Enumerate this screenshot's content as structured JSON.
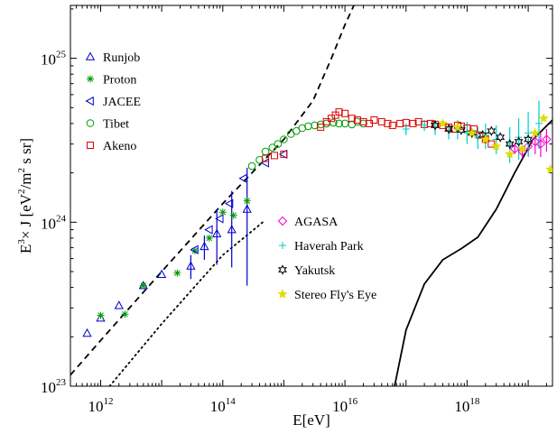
{
  "chart_data": {
    "type": "scatter",
    "title": "",
    "xlabel": "E[eV]",
    "ylabel": "E3× J [eV2/m2 s sr]",
    "ylabel_parts": {
      "e": "E",
      "e_exp": "3",
      "mid": "× J [eV",
      "ev_exp": "2",
      "m": "/m",
      "m_exp": "2",
      "tail": " s sr]"
    },
    "x_scale": "log",
    "y_scale": "log",
    "xlim": [
      320000000000.0,
      2.5e+19
    ],
    "ylim": [
      1e+23,
      2.1e+25
    ],
    "x_ticks": [
      {
        "value": 1000000000000.0,
        "base": "10",
        "exp": "12"
      },
      {
        "value": 100000000000000.0,
        "base": "10",
        "exp": "14"
      },
      {
        "value": 1e+16,
        "base": "10",
        "exp": "16"
      },
      {
        "value": 1e+18,
        "base": "10",
        "exp": "18"
      }
    ],
    "y_ticks": [
      {
        "value": 1e+23,
        "base": "10",
        "exp": "23"
      },
      {
        "value": 1e+24,
        "base": "10",
        "exp": "24"
      },
      {
        "value": 1e+25,
        "base": "10",
        "exp": "25"
      }
    ],
    "grid": false,
    "legend_placement": [
      "top-left",
      "center-right"
    ],
    "legend_groups": [
      [
        "Runjob",
        "Proton",
        "JACEE",
        "Tibet",
        "Akeno"
      ],
      [
        "AGASA",
        "Haverah Park",
        "Yakutsk",
        "Stereo Fly's Eye"
      ]
    ],
    "series": [
      {
        "name": "Runjob",
        "marker": "triangle-up",
        "color": "#0000cc",
        "points": [
          [
            600000000000.0,
            2.1e+23
          ],
          [
            1000000000000.0,
            2.6e+23
          ],
          [
            2000000000000.0,
            3.1e+23
          ],
          [
            5000000000000.0,
            4.1e+23
          ],
          [
            10000000000000.0,
            4.8e+23
          ],
          [
            30000000000000.0,
            5.4e+23
          ],
          [
            50000000000000.0,
            7.1e+23
          ],
          [
            80000000000000.0,
            8.5e+23
          ],
          [
            140000000000000.0,
            9e+23
          ],
          [
            250000000000000.0,
            1.2e+24
          ]
        ],
        "error_bars": [
          null,
          null,
          null,
          null,
          null,
          [
            4.5e+23,
            6.3e+23
          ],
          [
            5.9e+23,
            8.3e+23
          ],
          [
            5.5e+23,
            1.2e+24
          ],
          [
            5.3e+23,
            1.55e+24
          ],
          [
            4.1e+23,
            2.15e+24
          ]
        ]
      },
      {
        "name": "Proton",
        "marker": "asterisk",
        "color": "#009900",
        "points": [
          [
            1000000000000.0,
            2.7e+23
          ],
          [
            2500000000000.0,
            2.75e+23
          ],
          [
            5000000000000.0,
            4.1e+23
          ],
          [
            18000000000000.0,
            4.9e+23
          ],
          [
            35000000000000.0,
            6.7e+23
          ],
          [
            60000000000000.0,
            8e+23
          ],
          [
            100000000000000.0,
            1.15e+24
          ],
          [
            150000000000000.0,
            1.1e+24
          ],
          [
            250000000000000.0,
            1.35e+24
          ]
        ]
      },
      {
        "name": "JACEE",
        "marker": "triangle-left",
        "color": "#0000cc",
        "points": [
          [
            35000000000000.0,
            6.8e+23
          ],
          [
            60000000000000.0,
            9e+23
          ],
          [
            90000000000000.0,
            1.05e+24
          ],
          [
            130000000000000.0,
            1.3e+24
          ],
          [
            220000000000000.0,
            1.85e+24
          ],
          [
            500000000000000.0,
            2.3e+24
          ],
          [
            1000000000000000.0,
            2.6e+24
          ]
        ]
      },
      {
        "name": "Tibet",
        "marker": "circle",
        "color": "#009900",
        "points": [
          [
            300000000000000.0,
            2.2e+24
          ],
          [
            400000000000000.0,
            2.4e+24
          ],
          [
            500000000000000.0,
            2.7e+24
          ],
          [
            650000000000000.0,
            2.85e+24
          ],
          [
            800000000000000.0,
            3e+24
          ],
          [
            1000000000000000.0,
            3.2e+24
          ],
          [
            1300000000000000.0,
            3.45e+24
          ],
          [
            1600000000000000.0,
            3.6e+24
          ],
          [
            2000000000000000.0,
            3.75e+24
          ],
          [
            2500000000000000.0,
            3.85e+24
          ],
          [
            3200000000000000.0,
            3.9e+24
          ],
          [
            4000000000000000.0,
            3.95e+24
          ],
          [
            5000000000000000.0,
            4e+24
          ],
          [
            6500000000000000.0,
            4.05e+24
          ],
          [
            8000000000000000.0,
            4e+24
          ],
          [
            1e+16,
            4e+24
          ],
          [
            1.3e+16,
            3.95e+24
          ],
          [
            1.6e+16,
            4.1e+24
          ],
          [
            2e+16,
            4e+24
          ]
        ]
      },
      {
        "name": "Akeno",
        "marker": "square",
        "color": "#dd0000",
        "points": [
          [
            500000000000000.0,
            2.45e+24
          ],
          [
            700000000000000.0,
            2.55e+24
          ],
          [
            1000000000000000.0,
            2.6e+24
          ],
          [
            4000000000000000.0,
            3.8e+24
          ],
          [
            5000000000000000.0,
            4.1e+24
          ],
          [
            6000000000000000.0,
            4.3e+24
          ],
          [
            7000000000000000.0,
            4.5e+24
          ],
          [
            8000000000000000.0,
            4.7e+24
          ],
          [
            1e+16,
            4.6e+24
          ],
          [
            1.3e+16,
            4.3e+24
          ],
          [
            1.6e+16,
            4.2e+24
          ],
          [
            2e+16,
            4.1e+24
          ],
          [
            2.5e+16,
            4e+24
          ],
          [
            3e+16,
            4.2e+24
          ],
          [
            4e+16,
            4.1e+24
          ],
          [
            5e+16,
            4e+24
          ],
          [
            6e+16,
            3.9e+24
          ],
          [
            8e+16,
            4e+24
          ],
          [
            1e+17,
            4.05e+24
          ],
          [
            1.3e+17,
            4e+24
          ],
          [
            1.6e+17,
            4.1e+24
          ],
          [
            2e+17,
            3.95e+24
          ],
          [
            2.5e+17,
            4e+24
          ],
          [
            3e+17,
            3.95e+24
          ],
          [
            4e+17,
            3.9e+24
          ],
          [
            5e+17,
            3.8e+24
          ],
          [
            6e+17,
            3.7e+24
          ],
          [
            7e+17,
            3.9e+24
          ],
          [
            8e+17,
            3.85e+24
          ],
          [
            1e+18,
            3.75e+24
          ],
          [
            1.3e+18,
            3.7e+24
          ],
          [
            1.6e+18,
            3.4e+24
          ],
          [
            2e+18,
            3.2e+24
          ],
          [
            2.5e+18,
            3e+24
          ]
        ]
      },
      {
        "name": "AGASA",
        "marker": "diamond",
        "color": "#ff00cc",
        "points": [
          [
            6e+18,
            2.8e+24
          ],
          [
            8e+18,
            2.7e+24
          ],
          [
            1e+19,
            2.9e+24
          ],
          [
            1.3e+19,
            3.1e+24
          ],
          [
            1.6e+19,
            3e+24
          ],
          [
            2e+19,
            3.2e+24
          ]
        ],
        "error_bars": [
          [
            2.6e+24,
            3e+24
          ],
          [
            2.45e+24,
            2.95e+24
          ],
          [
            2.5e+24,
            3.3e+24
          ],
          [
            2.6e+24,
            3.6e+24
          ],
          [
            2.5e+24,
            3.5e+24
          ],
          [
            2.7e+24,
            3.7e+24
          ]
        ]
      },
      {
        "name": "Haverah Park",
        "marker": "plus",
        "color": "#00cccc",
        "points": [
          [
            1e+17,
            3.7e+24
          ],
          [
            2e+17,
            3.9e+24
          ],
          [
            3e+17,
            3.8e+24
          ],
          [
            5e+17,
            3.6e+24
          ],
          [
            7e+17,
            3.7e+24
          ],
          [
            1e+18,
            3.5e+24
          ],
          [
            1.5e+18,
            3.3e+24
          ],
          [
            2e+18,
            3.4e+24
          ],
          [
            3e+18,
            3.2e+24
          ],
          [
            5e+18,
            3e+24
          ],
          [
            7e+18,
            3.3e+24
          ],
          [
            1e+19,
            3.5e+24
          ],
          [
            1.5e+19,
            4e+24
          ]
        ],
        "error_bars": [
          [
            3.4e+24,
            4e+24
          ],
          [
            3.6e+24,
            4.2e+24
          ],
          [
            3.4e+24,
            4.2e+24
          ],
          [
            3.2e+24,
            4e+24
          ],
          [
            3.2e+24,
            4.2e+24
          ],
          [
            3e+24,
            4.1e+24
          ],
          [
            2.8e+24,
            3.8e+24
          ],
          [
            2.8e+24,
            4e+24
          ],
          [
            2.6e+24,
            3.9e+24
          ],
          [
            2.3e+24,
            3.8e+24
          ],
          [
            2.4e+24,
            4.3e+24
          ],
          [
            2.5e+24,
            4.7e+24
          ],
          [
            2.8e+24,
            5.5e+24
          ]
        ]
      },
      {
        "name": "Yakutsk",
        "marker": "hexagram",
        "color": "#000000",
        "points": [
          [
            3e+17,
            3.9e+24
          ],
          [
            5e+17,
            3.7e+24
          ],
          [
            8e+17,
            3.65e+24
          ],
          [
            1.2e+18,
            3.5e+24
          ],
          [
            1.8e+18,
            3.4e+24
          ],
          [
            2.5e+18,
            3.6e+24
          ],
          [
            3.5e+18,
            3.3e+24
          ],
          [
            5e+18,
            3e+24
          ],
          [
            7e+18,
            3.1e+24
          ],
          [
            1e+19,
            3.2e+24
          ]
        ]
      },
      {
        "name": "Stereo Fly's Eye",
        "marker": "star",
        "color": "#dddd00",
        "points": [
          [
            4e+17,
            4e+24
          ],
          [
            7e+17,
            3.8e+24
          ],
          [
            1.2e+18,
            3.5e+24
          ],
          [
            2e+18,
            3.2e+24
          ],
          [
            3e+18,
            2.9e+24
          ],
          [
            5e+18,
            2.6e+24
          ],
          [
            8e+18,
            2.8e+24
          ],
          [
            1.3e+19,
            3.5e+24
          ],
          [
            1.8e+19,
            4.3e+24
          ],
          [
            2.3e+19,
            2.1e+24
          ]
        ]
      }
    ],
    "lines": [
      {
        "style": "dashed",
        "points": [
          [
            320000000000.0,
            1.17e+23
          ],
          [
            1000000000000.0,
            1.9e+23
          ],
          [
            10000000000000.0,
            5e+23
          ],
          [
            100000000000000.0,
            1.3e+24
          ],
          [
            1000000000000000.0,
            3.2e+24
          ],
          [
            3000000000000000.0,
            5.5e+24
          ],
          [
            6000000000000000.0,
            1e+25
          ],
          [
            1e+16,
            1.6e+25
          ],
          [
            1.4e+16,
            2.1e+25
          ]
        ]
      },
      {
        "style": "dotted",
        "points": [
          [
            1400000000000.0,
            1e+23
          ],
          [
            10000000000000.0,
            2.4e+23
          ],
          [
            100000000000000.0,
            6.3e+23
          ],
          [
            450000000000000.0,
            1e+24
          ]
        ]
      },
      {
        "style": "solid",
        "points": [
          [
            6.5e+16,
            1e+23
          ],
          [
            1e+17,
            2.2e+23
          ],
          [
            2e+17,
            4.2e+23
          ],
          [
            4e+17,
            5.9e+23
          ],
          [
            8e+17,
            6.9e+23
          ],
          [
            1.5e+18,
            8.1e+23
          ],
          [
            3e+18,
            1.2e+24
          ],
          [
            6e+18,
            2e+24
          ],
          [
            1.2e+19,
            3.2e+24
          ],
          [
            2.5e+19,
            4.2e+24
          ]
        ]
      }
    ]
  }
}
